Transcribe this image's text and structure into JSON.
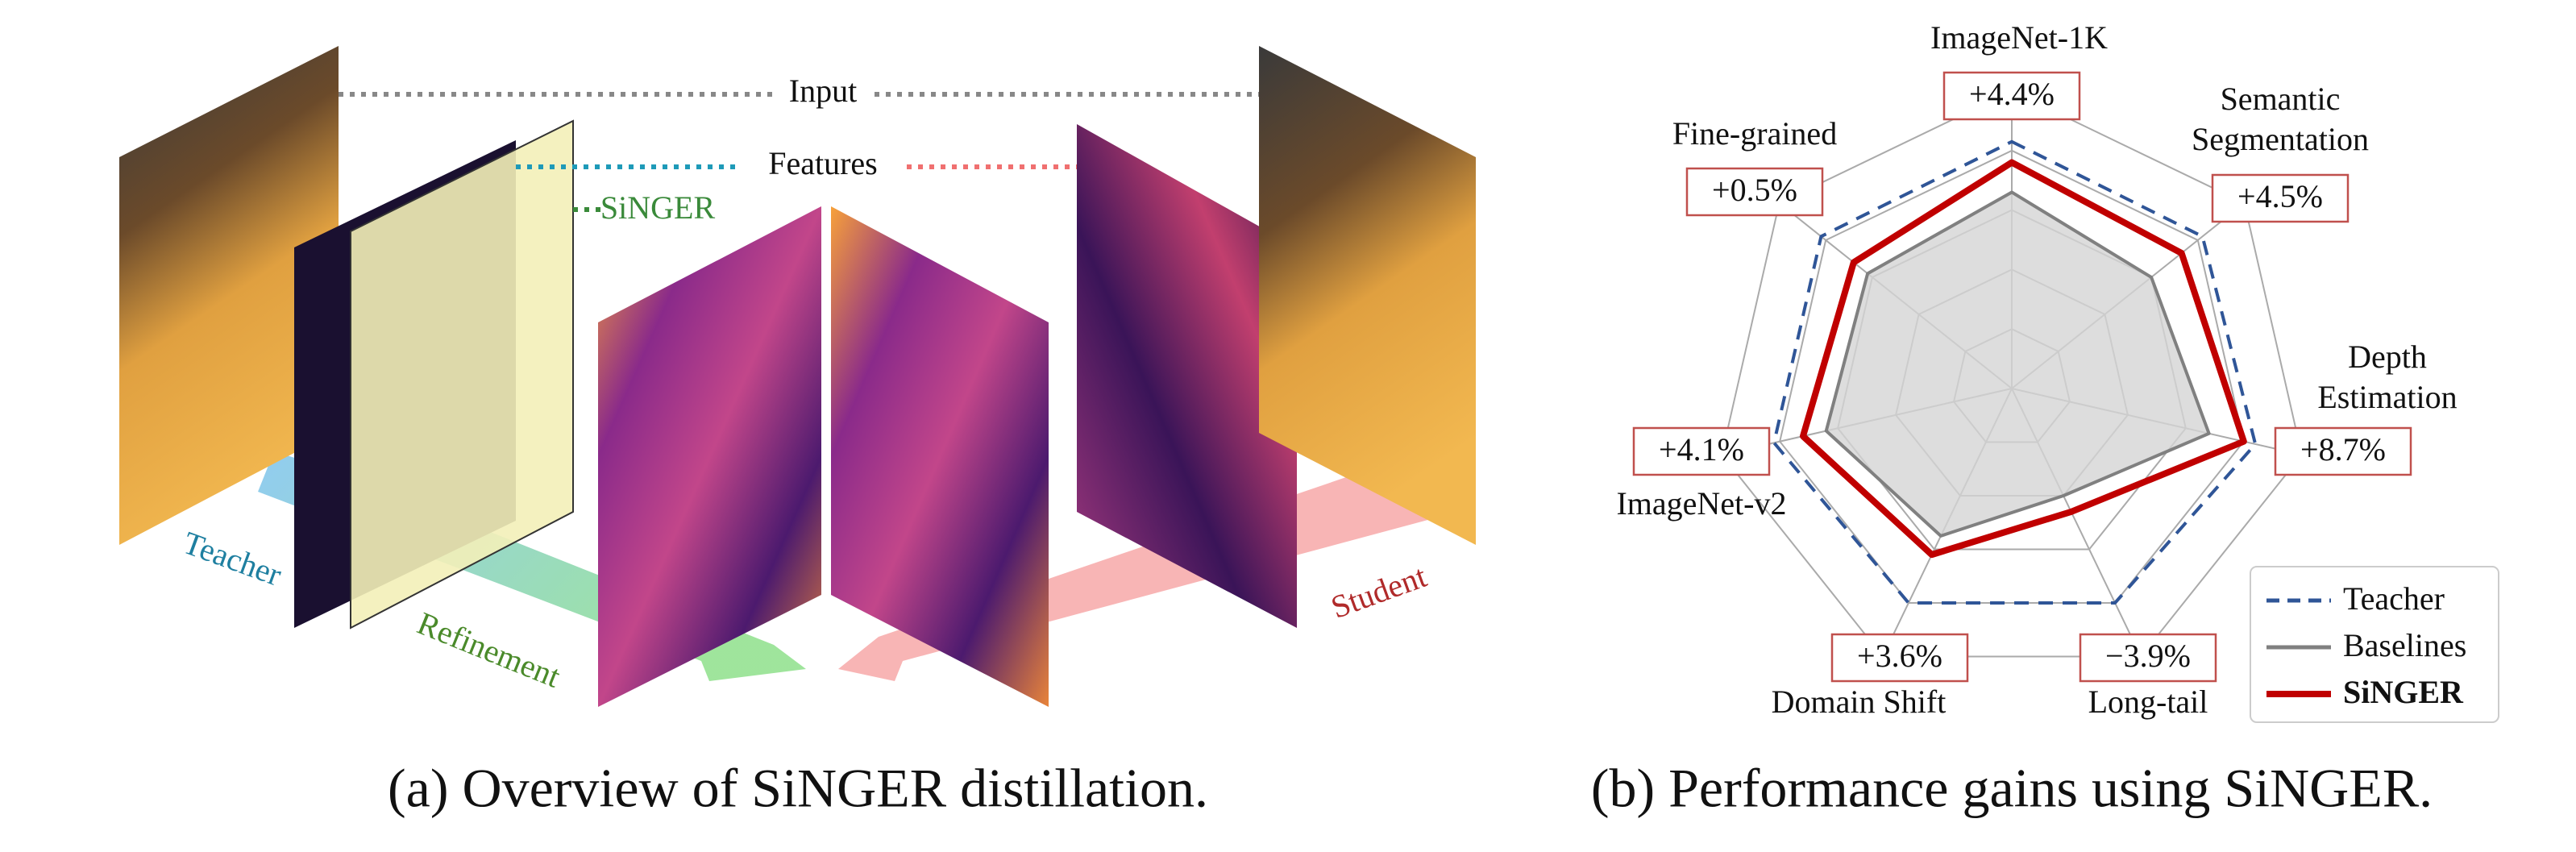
{
  "panel_a": {
    "caption": "(a) Overview of SiNGER distillation.",
    "input": "Input",
    "features": "Features",
    "singer": "SiNGER",
    "teacher": "Teacher",
    "refinement": "Refinement",
    "student": "Student"
  },
  "chart_data": {
    "type": "radar",
    "caption": "(b) Performance gains using SiNGER.",
    "categories": [
      [
        "ImageNet-1K"
      ],
      [
        "Semantic",
        "Segmentation"
      ],
      [
        "Depth",
        "Estimation"
      ],
      [
        "Long-tail"
      ],
      [
        "Domain Shift"
      ],
      [
        "ImageNet-v2"
      ],
      [
        "Fine-grained"
      ]
    ],
    "annotations": [
      "+4.4%",
      "+4.5%",
      "+8.7%",
      "−3.9%",
      "+3.6%",
      "+4.1%",
      "+0.5%"
    ],
    "annotation_color": "#c0504d",
    "rlim": [
      0,
      1
    ],
    "rticks": [
      0.2,
      0.4,
      0.6,
      0.8,
      1
    ],
    "grid": true,
    "legend": "lower right",
    "series": [
      {
        "name": "Teacher",
        "color": "#2f5597",
        "line_style": "dashed",
        "values": [
          0.83,
          0.82,
          0.84,
          0.8,
          0.8,
          0.82,
          0.82
        ]
      },
      {
        "name": "Baselines",
        "color": "#808080",
        "line_style": "solid",
        "fill": "#d4d4d4",
        "values": [
          0.66,
          0.6,
          0.68,
          0.4,
          0.55,
          0.64,
          0.62
        ]
      },
      {
        "name": "SiNGER",
        "color": "#c00000",
        "line_style": "solid",
        "values": [
          0.76,
          0.73,
          0.8,
          0.46,
          0.62,
          0.72,
          0.68
        ]
      }
    ]
  }
}
